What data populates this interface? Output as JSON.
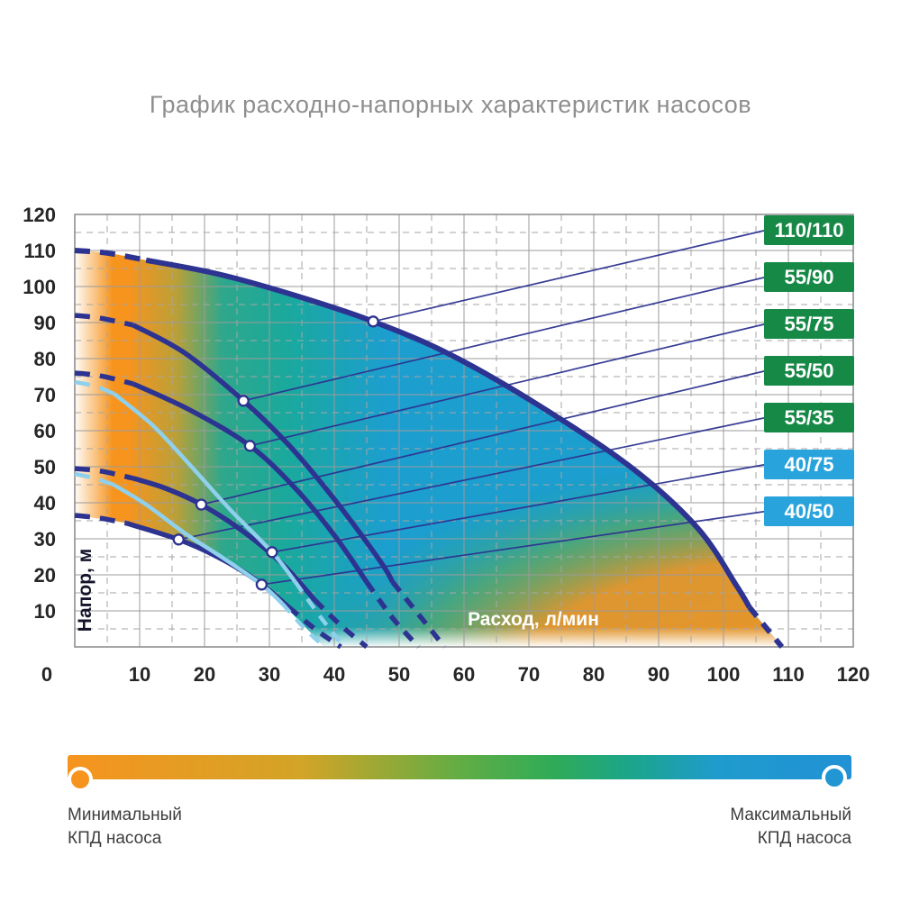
{
  "title": "График расходно-напорных характеристик насосов",
  "chart_data": {
    "type": "line",
    "title": "График расходно-напорных характеристик насосов",
    "xlabel": "Расход, л/мин",
    "ylabel": "Напор, м",
    "xlim": [
      0,
      120
    ],
    "ylim": [
      0,
      120
    ],
    "x_ticks": [
      0,
      10,
      20,
      30,
      40,
      50,
      60,
      70,
      80,
      90,
      100,
      110,
      120
    ],
    "y_ticks": [
      120,
      110,
      100,
      90,
      80,
      70,
      60,
      50,
      40,
      30,
      20,
      10
    ],
    "grid": {
      "solid_every": 10,
      "dashed_every": 5
    },
    "colors": {
      "navy": "#2d3390",
      "light_blue": "#8fd0ec",
      "green_badge": "#168947",
      "blue_badge": "#29a3dc",
      "grid_solid": "#9b9b9b",
      "grid_dashed": "#a6a6a6",
      "marker_fill": "#ffffff",
      "tick_text": "#262626",
      "xlabel_text": "#ffffff",
      "ylabel_text": "#14142a"
    },
    "series": [
      {
        "label": "110/110",
        "badge_color": "#168947",
        "line_color": "#2d3390",
        "width": 6,
        "head_dash": [
          [
            0,
            110
          ],
          [
            5,
            109.3
          ],
          [
            11,
            107.3
          ]
        ],
        "solid": [
          [
            11,
            107.3
          ],
          [
            22,
            103.5
          ],
          [
            34,
            97.5
          ],
          [
            46,
            90.3
          ],
          [
            58,
            81
          ],
          [
            72,
            66.5
          ],
          [
            86,
            49.5
          ],
          [
            96,
            33
          ],
          [
            102,
            17
          ],
          [
            104,
            11
          ]
        ],
        "tail_dash": [
          [
            104,
            11
          ],
          [
            106.5,
            5.5
          ],
          [
            109,
            0
          ]
        ],
        "marker": [
          46,
          90.3
        ]
      },
      {
        "label": "55/90",
        "badge_color": "#168947",
        "line_color": "#2d3390",
        "width": 5.5,
        "head_dash": [
          [
            0,
            92
          ],
          [
            4,
            91.2
          ],
          [
            9,
            89.3
          ]
        ],
        "solid": [
          [
            9,
            89.3
          ],
          [
            17,
            81.5
          ],
          [
            26,
            68.3
          ],
          [
            33,
            56
          ],
          [
            40,
            41
          ],
          [
            47,
            24
          ],
          [
            49,
            18
          ]
        ],
        "tail_dash": [
          [
            49,
            18
          ],
          [
            53,
            9
          ],
          [
            57,
            0
          ]
        ],
        "marker": [
          26,
          68.3
        ]
      },
      {
        "label": "55/75",
        "badge_color": "#168947",
        "line_color": "#2d3390",
        "width": 5.5,
        "head_dash": [
          [
            0,
            76
          ],
          [
            4,
            75.2
          ],
          [
            9,
            73
          ]
        ],
        "solid": [
          [
            9,
            73
          ],
          [
            18,
            65.5
          ],
          [
            27,
            55.8
          ],
          [
            34,
            44
          ],
          [
            40,
            31
          ],
          [
            45,
            18
          ]
        ],
        "tail_dash": [
          [
            45,
            18
          ],
          [
            49,
            8
          ],
          [
            53,
            0
          ]
        ],
        "marker": [
          27,
          55.8
        ]
      },
      {
        "label": "55/50",
        "badge_color": "#168947",
        "line_color": "#2d3390",
        "width": 5.5,
        "head_dash": [
          [
            0,
            49.5
          ],
          [
            4,
            48.8
          ],
          [
            9,
            46.8
          ]
        ],
        "solid": [
          [
            9,
            46.8
          ],
          [
            14,
            44
          ],
          [
            19.5,
            39.5
          ],
          [
            26,
            32
          ],
          [
            32,
            23
          ],
          [
            37,
            13
          ]
        ],
        "tail_dash": [
          [
            37,
            13
          ],
          [
            41,
            6
          ],
          [
            45,
            0
          ]
        ],
        "marker": [
          19.5,
          39.5
        ]
      },
      {
        "label": "55/35",
        "badge_color": "#168947",
        "line_color": "#2d3390",
        "width": 5.5,
        "head_dash": [
          [
            0,
            36.5
          ],
          [
            4,
            35.7
          ],
          [
            8,
            34.3
          ]
        ],
        "solid": [
          [
            8,
            34.3
          ],
          [
            16,
            29.8
          ],
          [
            22,
            25
          ],
          [
            28,
            18.5
          ],
          [
            33,
            11
          ]
        ],
        "tail_dash": [
          [
            33,
            11
          ],
          [
            37,
            5
          ],
          [
            41,
            0
          ]
        ],
        "marker": [
          16,
          29.8
        ]
      },
      {
        "label": "40/75",
        "badge_color": "#29a3dc",
        "line_color": "#8fd0ec",
        "width": 4.5,
        "head_dash": [
          [
            0,
            73.5
          ],
          [
            3,
            72.4
          ],
          [
            6,
            70.3
          ]
        ],
        "solid": [
          [
            6,
            70.3
          ],
          [
            12,
            61.5
          ],
          [
            18,
            50
          ],
          [
            24,
            38
          ],
          [
            30.4,
            26.3
          ],
          [
            34,
            18
          ]
        ],
        "tail_dash": [
          [
            34,
            18
          ],
          [
            38,
            8
          ],
          [
            41.5,
            0
          ]
        ],
        "marker": [
          30.4,
          26.3
        ]
      },
      {
        "label": "40/50",
        "badge_color": "#29a3dc",
        "line_color": "#8fd0ec",
        "width": 4.5,
        "head_dash": [
          [
            0,
            48
          ],
          [
            3,
            46.8
          ],
          [
            6,
            45
          ]
        ],
        "solid": [
          [
            6,
            45
          ],
          [
            11,
            39.5
          ],
          [
            17,
            31.5
          ],
          [
            23,
            24.5
          ],
          [
            28.8,
            17.3
          ],
          [
            32,
            12
          ]
        ],
        "tail_dash": [
          [
            32,
            12
          ],
          [
            35.5,
            5
          ],
          [
            38.5,
            0
          ]
        ],
        "marker": [
          28.8,
          17.3
        ]
      }
    ],
    "efficiency_region": {
      "top_boundary": [
        [
          0,
          110
        ],
        [
          5,
          109.3
        ],
        [
          11,
          107.3
        ],
        [
          22,
          103.5
        ],
        [
          34,
          97.5
        ],
        [
          46,
          90.3
        ],
        [
          58,
          81
        ],
        [
          72,
          66.5
        ],
        [
          86,
          49.5
        ],
        [
          96,
          33
        ],
        [
          102,
          17
        ],
        [
          104,
          11
        ],
        [
          106.5,
          5.5
        ],
        [
          109,
          0
        ]
      ],
      "lower_boundary": [
        [
          38.5,
          0
        ],
        [
          32,
          12
        ],
        [
          28.8,
          17.3
        ],
        [
          23,
          24.5
        ],
        [
          16,
          29.8
        ],
        [
          8,
          34.3
        ],
        [
          0,
          36.5
        ]
      ],
      "fill_stops": [
        [
          "#F6941E",
          0
        ],
        [
          "#F6941E",
          7
        ],
        [
          "#BBA038",
          13
        ],
        [
          "#2EA78C",
          19
        ],
        [
          "#1AA99C",
          27
        ],
        [
          "#1C9ECF",
          40
        ],
        [
          "#1C9ECF",
          100
        ]
      ],
      "corner_band_stops": [
        [
          "rgba(246,148,30,0.95)",
          0
        ],
        [
          "rgba(242,149,31,0.9)",
          45
        ],
        [
          "rgba(102,171,73,0.6)",
          62
        ],
        [
          "rgba(31,164,143,0)",
          80
        ],
        [
          "rgba(31,164,143,0)",
          100
        ]
      ]
    }
  },
  "legend_bar": {
    "min_label_line1": "Минимальный",
    "min_label_line2": "КПД насоса",
    "max_label_line1": "Максимальный",
    "max_label_line2": "КПД насоса",
    "min_dot_color": "#F6941E",
    "max_dot_color": "#2196D3",
    "gradient_stops": [
      [
        "#F6941E",
        0
      ],
      [
        "#D2A427",
        30
      ],
      [
        "#62AD44",
        50
      ],
      [
        "#2FAB57",
        62
      ],
      [
        "#1BA58C",
        72
      ],
      [
        "#209BCE",
        83
      ],
      [
        "#2191D4",
        100
      ]
    ]
  }
}
